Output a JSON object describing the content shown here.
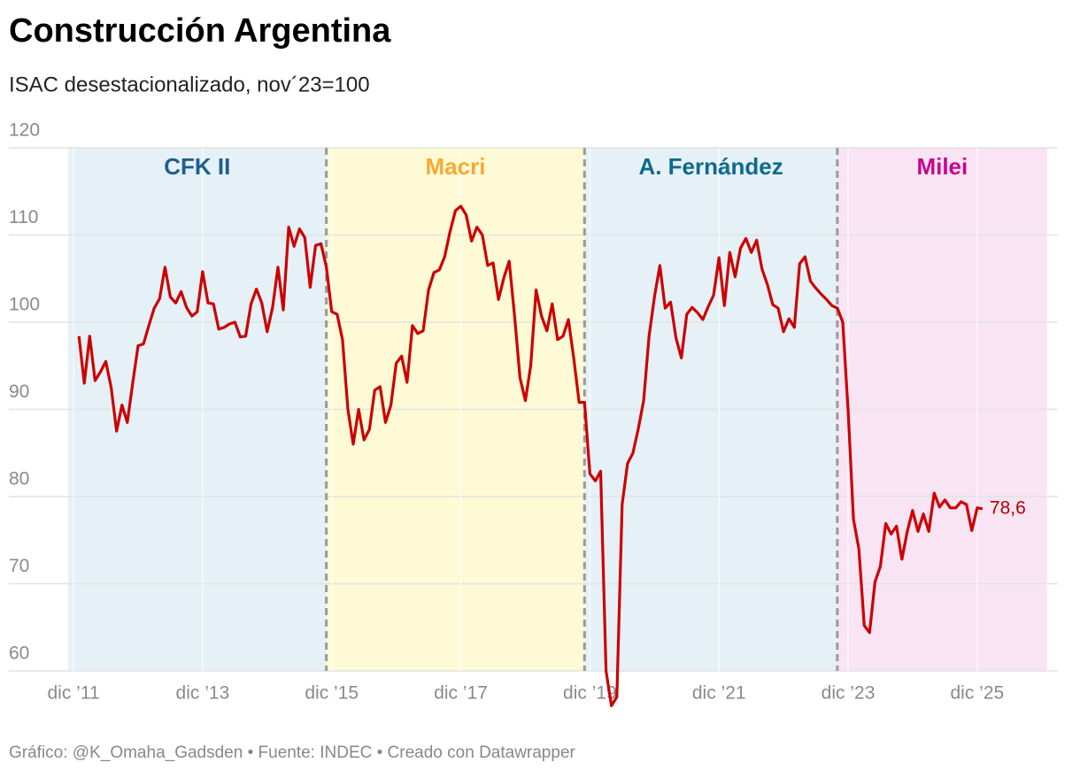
{
  "chart_data": {
    "type": "line",
    "title": "Construcción Argentina",
    "subtitle": "ISAC desestacionalizado, nov´23=100",
    "footer": "Gráfico: @K_Omaha_Gadsden • Fuente: INDEC • Creado con Datawrapper",
    "xlim": [
      "2011-11",
      "2027-03"
    ],
    "ylim": [
      60,
      120
    ],
    "yticks": [
      60,
      70,
      80,
      90,
      100,
      110,
      120
    ],
    "xticks": [
      {
        "value": "2011-12",
        "label": "dic ’11"
      },
      {
        "value": "2013-12",
        "label": "dic ’13"
      },
      {
        "value": "2015-12",
        "label": "dic ’15"
      },
      {
        "value": "2017-12",
        "label": "dic ’17"
      },
      {
        "value": "2019-12",
        "label": "dic ’19"
      },
      {
        "value": "2021-12",
        "label": "dic ’21"
      },
      {
        "value": "2023-12",
        "label": "dic ’23"
      },
      {
        "value": "2025-12",
        "label": "dic ’25"
      }
    ],
    "grid": true,
    "periods": [
      {
        "name": "CFK II",
        "start": "2011-11",
        "end": "2015-11",
        "color": "#e5f1f6",
        "label_color": "#1f5f8f"
      },
      {
        "name": "Macri",
        "start": "2015-11",
        "end": "2019-11",
        "color": "#fefad6",
        "label_color": "#f7a935"
      },
      {
        "name": "A. Fernández",
        "start": "2019-11",
        "end": "2023-10",
        "color": "#e5f1f6",
        "label_color": "#0d6a8e"
      },
      {
        "name": "Milei",
        "start": "2023-10",
        "end": "2027-01",
        "color": "#f9e4f3",
        "label_color": "#c7058f"
      }
    ],
    "series": [
      {
        "name": "ISAC",
        "color": "#cc0000",
        "x": [
          "2012-01",
          "2012-02",
          "2012-03",
          "2012-04",
          "2012-05",
          "2012-06",
          "2012-07",
          "2012-08",
          "2012-09",
          "2012-10",
          "2012-11",
          "2012-12",
          "2013-01",
          "2013-02",
          "2013-03",
          "2013-04",
          "2013-05",
          "2013-06",
          "2013-07",
          "2013-08",
          "2013-09",
          "2013-10",
          "2013-11",
          "2013-12",
          "2014-01",
          "2014-02",
          "2014-03",
          "2014-04",
          "2014-05",
          "2014-06",
          "2014-07",
          "2014-08",
          "2014-09",
          "2014-10",
          "2014-11",
          "2014-12",
          "2015-01",
          "2015-02",
          "2015-03",
          "2015-04",
          "2015-05",
          "2015-06",
          "2015-07",
          "2015-08",
          "2015-09",
          "2015-10",
          "2015-11",
          "2015-12",
          "2016-01",
          "2016-02",
          "2016-03",
          "2016-04",
          "2016-05",
          "2016-06",
          "2016-07",
          "2016-08",
          "2016-09",
          "2016-10",
          "2016-11",
          "2016-12",
          "2017-01",
          "2017-02",
          "2017-03",
          "2017-04",
          "2017-05",
          "2017-06",
          "2017-07",
          "2017-08",
          "2017-09",
          "2017-10",
          "2017-11",
          "2017-12",
          "2018-01",
          "2018-02",
          "2018-03",
          "2018-04",
          "2018-05",
          "2018-06",
          "2018-07",
          "2018-08",
          "2018-09",
          "2018-10",
          "2018-11",
          "2018-12",
          "2019-01",
          "2019-02",
          "2019-03",
          "2019-04",
          "2019-05",
          "2019-06",
          "2019-07",
          "2019-08",
          "2019-09",
          "2019-10",
          "2019-11",
          "2019-12",
          "2020-01",
          "2020-02",
          "2020-03",
          "2020-04",
          "2020-05",
          "2020-06",
          "2020-07",
          "2020-08",
          "2020-09",
          "2020-10",
          "2020-11",
          "2020-12",
          "2021-01",
          "2021-02",
          "2021-03",
          "2021-04",
          "2021-05",
          "2021-06",
          "2021-07",
          "2021-08",
          "2021-09",
          "2021-10",
          "2021-11",
          "2021-12",
          "2022-01",
          "2022-02",
          "2022-03",
          "2022-04",
          "2022-05",
          "2022-06",
          "2022-07",
          "2022-08",
          "2022-09",
          "2022-10",
          "2022-11",
          "2022-12",
          "2023-01",
          "2023-02",
          "2023-03",
          "2023-04",
          "2023-05",
          "2023-06",
          "2023-07",
          "2023-08",
          "2023-09",
          "2023-10",
          "2023-11",
          "2023-12",
          "2024-01",
          "2024-02",
          "2024-03",
          "2024-04",
          "2024-05",
          "2024-06",
          "2024-07",
          "2024-08",
          "2024-09",
          "2024-10",
          "2024-11",
          "2024-12",
          "2025-01",
          "2025-02",
          "2025-03",
          "2025-04",
          "2025-05",
          "2025-06",
          "2025-07",
          "2025-08",
          "2025-09",
          "2025-10",
          "2025-11",
          "2025-12",
          "2026-01"
        ],
        "values": [
          98.4,
          93,
          98.4,
          93.3,
          94.3,
          95.5,
          92.5,
          87.5,
          90.5,
          88.5,
          93,
          97.3,
          97.5,
          99.6,
          101.6,
          102.7,
          106.3,
          102.9,
          102.2,
          103.5,
          101.7,
          100.7,
          101.2,
          105.8,
          102.2,
          102.1,
          99.2,
          99.4,
          99.8,
          100,
          98.3,
          98.4,
          102.1,
          103.8,
          102.2,
          98.9,
          101.7,
          106.3,
          101.4,
          110.9,
          108.7,
          110.7,
          109.7,
          104,
          108.8,
          109,
          106.3,
          101.2,
          100.9,
          98,
          90,
          86,
          90,
          86.5,
          87.7,
          92.2,
          92.6,
          88.5,
          90.5,
          95.3,
          96.1,
          93.1,
          99.6,
          98.7,
          99,
          103.7,
          105.7,
          106,
          107.5,
          110.4,
          112.8,
          113.3,
          112.3,
          109.3,
          110.9,
          110,
          106.5,
          106.8,
          102.6,
          105.1,
          107,
          100.7,
          93.6,
          91,
          95,
          103.7,
          100.7,
          99,
          102.1,
          98,
          98.4,
          100.3,
          95.8,
          90.8,
          90.8,
          82.6,
          81.8,
          82.9,
          60,
          56,
          57,
          79.1,
          83.8,
          85,
          87.8,
          91,
          98.4,
          102.9,
          106.5,
          101.6,
          102.3,
          98.2,
          95.9,
          100.9,
          101.7,
          101.1,
          100.3,
          101.8,
          103.1,
          107.4,
          101.9,
          108,
          105.2,
          108.5,
          109.6,
          108,
          109.4,
          106.1,
          104.3,
          102,
          101.6,
          98.9,
          100.4,
          99.4,
          106.7,
          107.5,
          104.7,
          103.9,
          103.2,
          102.6,
          101.9,
          101.6,
          100,
          90,
          77.4,
          74,
          65.2,
          64.4,
          70.2,
          72,
          76.9,
          75.7,
          76.6,
          72.8,
          76,
          78.4,
          76,
          78,
          76,
          80.4,
          78.8,
          79.6,
          78.7,
          78.7,
          79.4,
          79.1,
          76.1,
          78.7,
          78.6
        ]
      }
    ],
    "annotations": [
      {
        "x": "2026-01",
        "value": 78.6,
        "label": "78,6",
        "color": "#b30000"
      }
    ]
  }
}
